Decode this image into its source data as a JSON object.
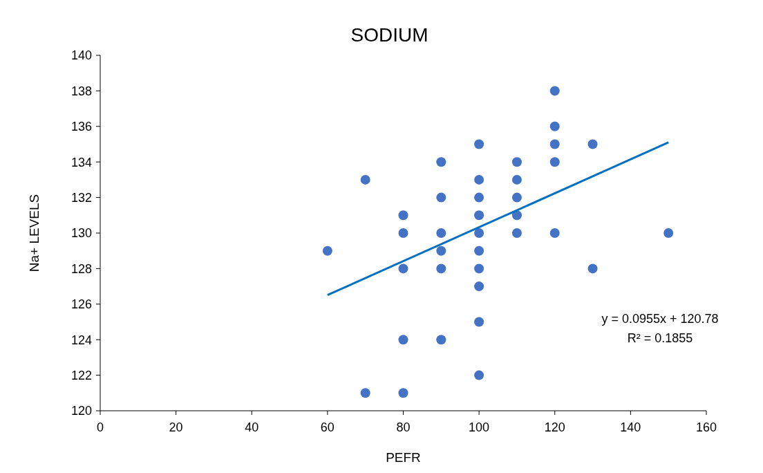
{
  "chart_data": {
    "type": "scatter",
    "title": "SODIUM",
    "xlabel": "PEFR",
    "ylabel": "Na+ LEVELS",
    "xlim": [
      0,
      160
    ],
    "xticks": [
      0,
      20,
      40,
      60,
      80,
      100,
      120,
      140,
      160
    ],
    "ylim": [
      120,
      140
    ],
    "yticks": [
      120,
      122,
      124,
      126,
      128,
      130,
      132,
      134,
      136,
      138,
      140
    ],
    "grid": false,
    "series": [
      {
        "color": "#4472c4",
        "marker": "circle",
        "x": [
          60,
          70,
          70,
          80,
          80,
          80,
          80,
          80,
          90,
          90,
          90,
          90,
          90,
          90,
          100,
          100,
          100,
          100,
          100,
          100,
          100,
          100,
          100,
          100,
          110,
          110,
          110,
          110,
          110,
          120,
          120,
          120,
          120,
          120,
          130,
          130,
          150
        ],
        "values": [
          129,
          133,
          121,
          131,
          130,
          128,
          124,
          121,
          134,
          132,
          130,
          129,
          128,
          124,
          135,
          133,
          132,
          131,
          130,
          129,
          128,
          127,
          125,
          122,
          134,
          133,
          132,
          131,
          130,
          138,
          136,
          135,
          134,
          130,
          135,
          128,
          130
        ]
      },
      {
        "type": "line",
        "color": "#0070c0",
        "line_style": "solid",
        "marker": "none",
        "x": [
          60,
          150
        ],
        "values": [
          126.51,
          135.1
        ]
      }
    ],
    "annotations": [
      {
        "text": "y = 0.0955x + 120.78"
      },
      {
        "text": "R² = 0.1855"
      }
    ]
  }
}
